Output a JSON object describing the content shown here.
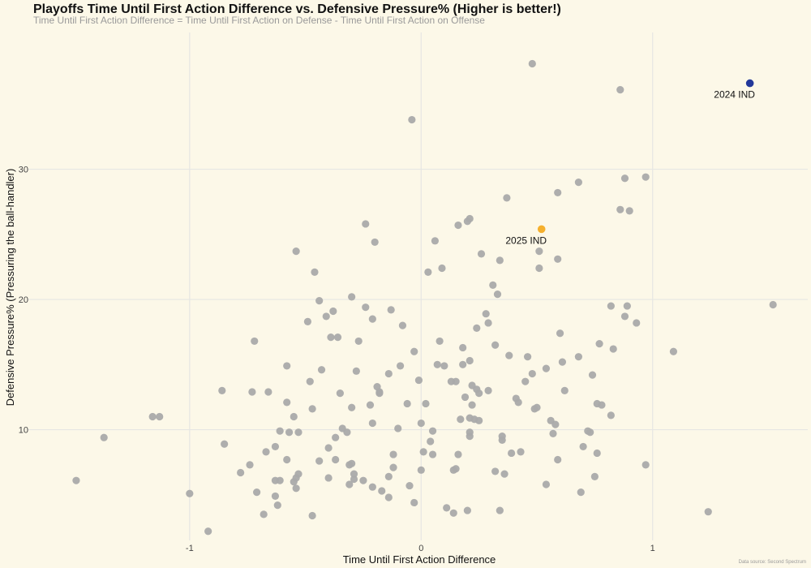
{
  "chart_data": {
    "type": "scatter",
    "title": "Playoffs Time Until First Action Difference vs. Defensive Pressure% (Higher is better!)",
    "subtitle": "Time Until First Action Difference = Time Until First Action on Defense - Time Until First Action on Offense",
    "xlabel": "Time Until First Action Difference",
    "ylabel": "Defensive Pressure% (Pressuring the ball-handler)",
    "xlim": [
      -1.7,
      1.67
    ],
    "ylim": [
      1.5,
      40.5
    ],
    "x_ticks": [
      -1,
      0,
      1
    ],
    "x_tick_labels": [
      "-1",
      "0",
      "1"
    ],
    "y_ticks": [
      10,
      20,
      30
    ],
    "y_tick_labels": [
      "10",
      "20",
      "30"
    ],
    "grid": true,
    "legend": "none",
    "colors": {
      "default": "#aaaaaa",
      "highlight_2024": "#23389a",
      "highlight_2025": "#f5b02d",
      "background": "#fcf8e8"
    },
    "highlighted": [
      {
        "label": "2024 IND",
        "x": 1.42,
        "y": 36.6,
        "color": "#23389a"
      },
      {
        "label": "2025 IND",
        "x": 0.52,
        "y": 25.4,
        "color": "#f5b02d"
      }
    ],
    "points": [
      [
        -1.49,
        6.1
      ],
      [
        -1.37,
        9.4
      ],
      [
        -1.16,
        11.0
      ],
      [
        -1.13,
        11.0
      ],
      [
        -1.0,
        5.1
      ],
      [
        -0.92,
        2.2
      ],
      [
        -0.86,
        13.0
      ],
      [
        -0.85,
        8.9
      ],
      [
        -0.78,
        6.7
      ],
      [
        -0.74,
        7.3
      ],
      [
        -0.73,
        12.9
      ],
      [
        -0.72,
        16.8
      ],
      [
        -0.71,
        5.2
      ],
      [
        -0.68,
        3.5
      ],
      [
        -0.67,
        8.3
      ],
      [
        -0.66,
        12.9
      ],
      [
        -0.63,
        4.9
      ],
      [
        -0.63,
        8.7
      ],
      [
        -0.63,
        6.1
      ],
      [
        -0.62,
        4.2
      ],
      [
        -0.61,
        6.1
      ],
      [
        -0.61,
        9.9
      ],
      [
        -0.58,
        14.9
      ],
      [
        -0.58,
        12.1
      ],
      [
        -0.58,
        7.7
      ],
      [
        -0.57,
        9.8
      ],
      [
        -0.55,
        6.0
      ],
      [
        -0.55,
        11.0
      ],
      [
        -0.54,
        6.3
      ],
      [
        -0.54,
        5.5
      ],
      [
        -0.53,
        6.6
      ],
      [
        -0.53,
        9.8
      ],
      [
        -0.54,
        23.7
      ],
      [
        -0.49,
        18.3
      ],
      [
        -0.48,
        13.7
      ],
      [
        -0.47,
        11.6
      ],
      [
        -0.47,
        3.4
      ],
      [
        -0.46,
        22.1
      ],
      [
        -0.44,
        19.9
      ],
      [
        -0.44,
        7.6
      ],
      [
        -0.43,
        14.6
      ],
      [
        -0.41,
        18.7
      ],
      [
        -0.4,
        8.6
      ],
      [
        -0.4,
        6.3
      ],
      [
        -0.39,
        17.1
      ],
      [
        -0.38,
        19.1
      ],
      [
        -0.37,
        7.7
      ],
      [
        -0.37,
        9.4
      ],
      [
        -0.36,
        17.1
      ],
      [
        -0.35,
        12.8
      ],
      [
        -0.34,
        10.1
      ],
      [
        -0.32,
        9.8
      ],
      [
        -0.31,
        7.3
      ],
      [
        -0.31,
        5.8
      ],
      [
        -0.3,
        20.2
      ],
      [
        -0.3,
        11.7
      ],
      [
        -0.3,
        7.4
      ],
      [
        -0.29,
        6.2
      ],
      [
        -0.29,
        6.6
      ],
      [
        -0.28,
        14.5
      ],
      [
        -0.27,
        16.8
      ],
      [
        -0.25,
        6.1
      ],
      [
        -0.24,
        25.8
      ],
      [
        -0.24,
        19.4
      ],
      [
        -0.22,
        11.9
      ],
      [
        -0.21,
        5.6
      ],
      [
        -0.21,
        10.5
      ],
      [
        -0.21,
        18.5
      ],
      [
        -0.2,
        24.4
      ],
      [
        -0.19,
        13.3
      ],
      [
        -0.18,
        12.9
      ],
      [
        -0.18,
        12.8
      ],
      [
        -0.17,
        5.3
      ],
      [
        -0.14,
        4.8
      ],
      [
        -0.14,
        14.3
      ],
      [
        -0.14,
        6.4
      ],
      [
        -0.13,
        19.2
      ],
      [
        -0.12,
        7.1
      ],
      [
        -0.12,
        8.1
      ],
      [
        -0.1,
        10.1
      ],
      [
        -0.09,
        14.9
      ],
      [
        -0.08,
        18.0
      ],
      [
        -0.06,
        12.0
      ],
      [
        -0.05,
        5.7
      ],
      [
        -0.04,
        33.8
      ],
      [
        -0.03,
        16.0
      ],
      [
        -0.03,
        4.4
      ],
      [
        -0.01,
        13.8
      ],
      [
        0.0,
        10.5
      ],
      [
        0.0,
        6.9
      ],
      [
        0.01,
        8.3
      ],
      [
        0.02,
        12.0
      ],
      [
        0.03,
        22.1
      ],
      [
        0.04,
        9.1
      ],
      [
        0.05,
        9.9
      ],
      [
        0.05,
        8.1
      ],
      [
        0.06,
        24.5
      ],
      [
        0.07,
        15.0
      ],
      [
        0.08,
        16.8
      ],
      [
        0.09,
        22.4
      ],
      [
        0.1,
        14.9
      ],
      [
        0.11,
        4.0
      ],
      [
        0.13,
        13.7
      ],
      [
        0.14,
        3.6
      ],
      [
        0.14,
        6.9
      ],
      [
        0.15,
        7.0
      ],
      [
        0.15,
        13.7
      ],
      [
        0.16,
        8.1
      ],
      [
        0.16,
        25.7
      ],
      [
        0.17,
        10.8
      ],
      [
        0.18,
        16.3
      ],
      [
        0.18,
        15.0
      ],
      [
        0.19,
        12.5
      ],
      [
        0.2,
        3.8
      ],
      [
        0.2,
        26.0
      ],
      [
        0.21,
        26.2
      ],
      [
        0.21,
        9.5
      ],
      [
        0.21,
        9.8
      ],
      [
        0.21,
        10.9
      ],
      [
        0.21,
        15.3
      ],
      [
        0.22,
        11.9
      ],
      [
        0.22,
        13.4
      ],
      [
        0.23,
        10.8
      ],
      [
        0.24,
        17.8
      ],
      [
        0.24,
        13.1
      ],
      [
        0.25,
        10.7
      ],
      [
        0.25,
        12.8
      ],
      [
        0.26,
        23.5
      ],
      [
        0.28,
        18.9
      ],
      [
        0.29,
        18.2
      ],
      [
        0.29,
        13.0
      ],
      [
        0.31,
        21.1
      ],
      [
        0.32,
        16.5
      ],
      [
        0.32,
        6.8
      ],
      [
        0.33,
        20.4
      ],
      [
        0.34,
        23.0
      ],
      [
        0.34,
        3.8
      ],
      [
        0.35,
        9.5
      ],
      [
        0.35,
        9.2
      ],
      [
        0.36,
        6.6
      ],
      [
        0.37,
        27.8
      ],
      [
        0.38,
        15.7
      ],
      [
        0.39,
        8.2
      ],
      [
        0.41,
        12.4
      ],
      [
        0.42,
        12.1
      ],
      [
        0.43,
        8.3
      ],
      [
        0.45,
        13.7
      ],
      [
        0.46,
        15.6
      ],
      [
        0.48,
        14.3
      ],
      [
        0.48,
        38.1
      ],
      [
        0.49,
        11.6
      ],
      [
        0.5,
        11.7
      ],
      [
        0.51,
        23.7
      ],
      [
        0.51,
        22.4
      ],
      [
        0.54,
        5.8
      ],
      [
        0.54,
        14.7
      ],
      [
        0.56,
        10.7
      ],
      [
        0.57,
        9.7
      ],
      [
        0.58,
        10.4
      ],
      [
        0.59,
        7.7
      ],
      [
        0.59,
        28.2
      ],
      [
        0.59,
        23.1
      ],
      [
        0.6,
        17.4
      ],
      [
        0.61,
        15.2
      ],
      [
        0.62,
        13.0
      ],
      [
        0.68,
        29.0
      ],
      [
        0.68,
        15.6
      ],
      [
        0.69,
        5.2
      ],
      [
        0.7,
        8.7
      ],
      [
        0.72,
        9.9
      ],
      [
        0.73,
        9.8
      ],
      [
        0.74,
        14.2
      ],
      [
        0.75,
        6.4
      ],
      [
        0.76,
        12.0
      ],
      [
        0.76,
        8.2
      ],
      [
        0.77,
        16.6
      ],
      [
        0.78,
        11.9
      ],
      [
        0.82,
        19.5
      ],
      [
        0.82,
        11.1
      ],
      [
        0.83,
        16.2
      ],
      [
        0.86,
        36.1
      ],
      [
        0.86,
        26.9
      ],
      [
        0.88,
        18.7
      ],
      [
        0.88,
        29.3
      ],
      [
        0.89,
        19.5
      ],
      [
        0.9,
        26.8
      ],
      [
        0.93,
        18.2
      ],
      [
        0.97,
        7.3
      ],
      [
        0.97,
        29.4
      ],
      [
        1.09,
        16.0
      ],
      [
        1.24,
        3.7
      ],
      [
        1.52,
        19.6
      ]
    ],
    "caption": "Data source: Second Spectrum"
  }
}
